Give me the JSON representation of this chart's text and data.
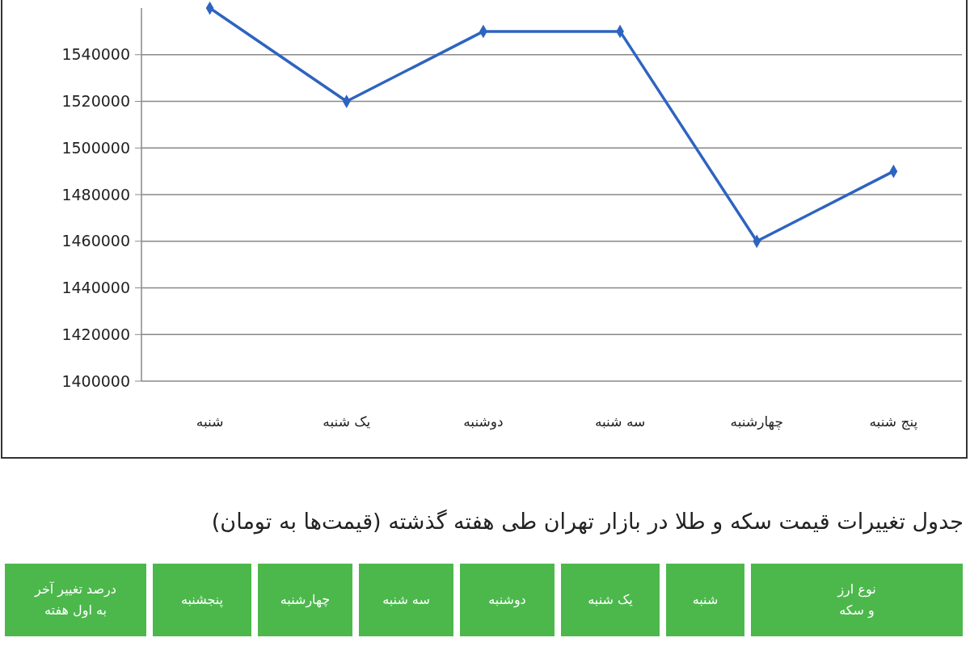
{
  "chart_data": {
    "type": "line",
    "categories": [
      "شنبه",
      "یک شنبه",
      "دوشنبه",
      "سه شنبه",
      "چهارشنبه",
      "پنج شنبه"
    ],
    "series": [
      {
        "color": "#2e64c0",
        "values": [
          1560000,
          1520000,
          1550000,
          1550000,
          1460000,
          1490000
        ]
      }
    ],
    "ylim": [
      1400000,
      1560000
    ],
    "yticks": [
      1400000,
      1420000,
      1440000,
      1460000,
      1480000,
      1500000,
      1520000,
      1540000
    ],
    "grid": "y",
    "marker": "diamond",
    "annotations": [
      "جدول تغییرات قیمت سکه و طلا در بازار تهران طی هفته گذشته (قیمت‌ها به تومان)",
      "نوع ارز و سکه",
      "شنبه",
      "یک شنبه",
      "دوشنبه",
      "سه شنبه",
      "چهارشنبه",
      "پنجشنبه",
      "درصد تغییر آخر به اول هفته"
    ]
  }
}
